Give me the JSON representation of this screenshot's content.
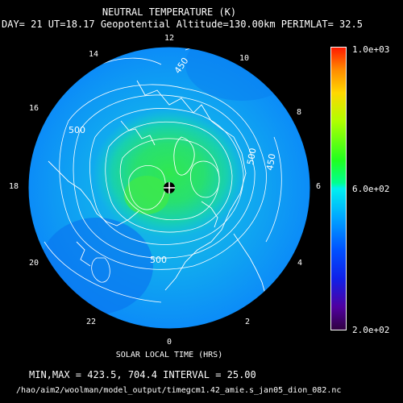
{
  "header": {
    "title": "NEUTRAL TEMPERATURE (K)",
    "subtitle": "DAY= 21 UT=18.17 Geopotential Altitude=130.00km PERIMLAT= 32.5"
  },
  "map": {
    "projection": "polar",
    "contour_labels": [
      "450",
      "500",
      "500",
      "450",
      "500"
    ],
    "hour_labels": [
      "12",
      "10",
      "8",
      "6",
      "4",
      "2",
      "0",
      "22",
      "20",
      "18",
      "16",
      "14"
    ],
    "colors": {
      "background": "#000000",
      "contour": "#ffffff",
      "land_outline": "#ffffff"
    }
  },
  "colorbar": {
    "max_label": "1.0e+03",
    "mid_label": "6.0e+02",
    "min_label": "2.0e+02"
  },
  "footer": {
    "xlabel": "SOLAR LOCAL TIME (HRS)",
    "stats": "MIN,MAX =     423.5,     704.4 INTERVAL =      25.00",
    "file_path": "/hao/aim2/woolman/model_output/timegcm1.42_amie.s_jan05_dion_082.nc"
  }
}
